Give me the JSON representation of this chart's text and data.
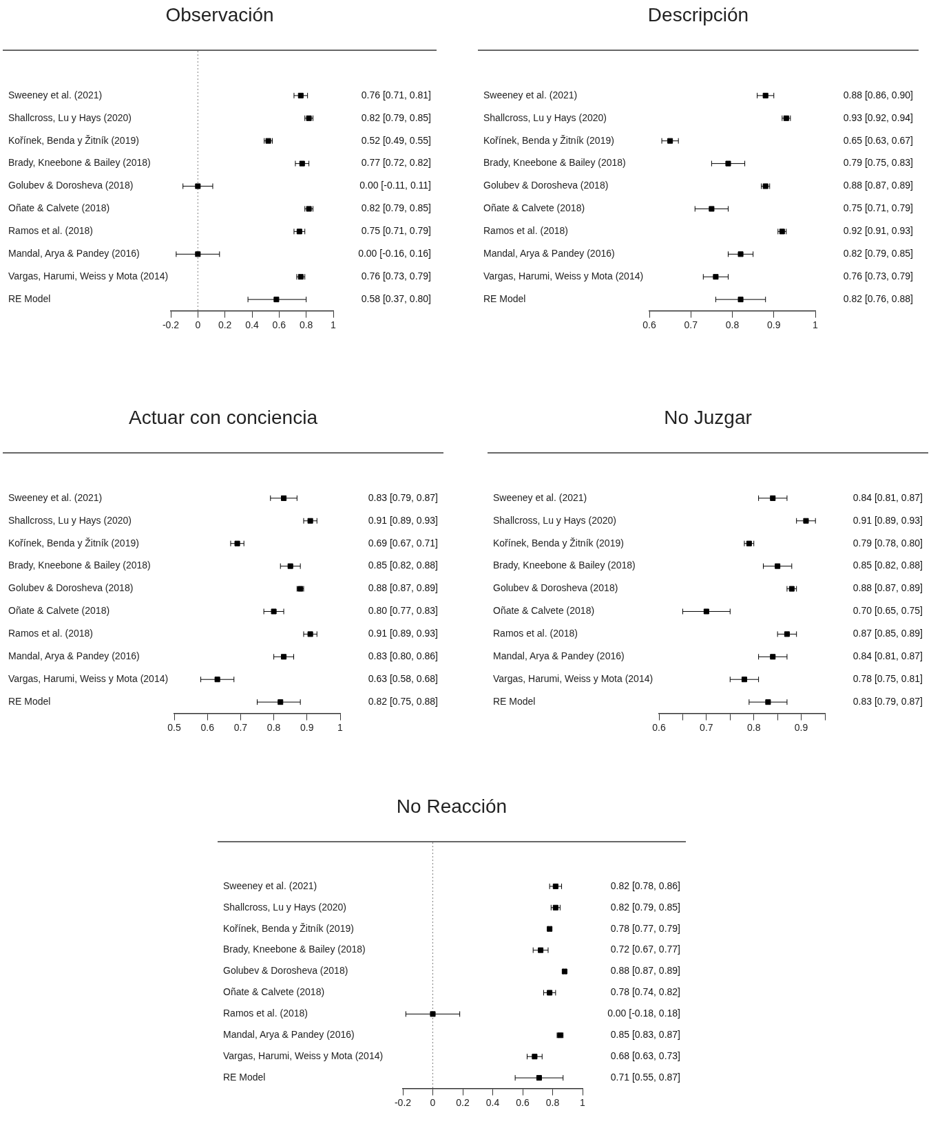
{
  "chart_data": [
    {
      "type": "scatter",
      "orientation": "horizontal",
      "title": "Observación",
      "categories": [
        "Sweeney et al. (2021)",
        "Shallcross, Lu y Hays (2020)",
        "Kořínek, Benda y Žitník (2019)",
        "Brady, Kneebone & Bailey (2018)",
        "Golubev & Dorosheva (2018)",
        "Oñate & Calvete (2018)",
        "Ramos et al. (2018)",
        "Mandal, Arya & Pandey (2016)",
        "Vargas, Harumi, Weiss y Mota (2014)",
        "RE Model"
      ],
      "xlim": [
        -0.2,
        1
      ],
      "xticks": [
        -0.2,
        0,
        0.2,
        0.4,
        0.6,
        0.8,
        1
      ],
      "ref_lines": [
        {
          "axis": "x",
          "value": 0,
          "line_style": "dotted",
          "color": "#808080"
        }
      ],
      "series": [
        {
          "color": "#000000",
          "marker": "square",
          "values": [
            0.76,
            0.82,
            0.52,
            0.77,
            0.0,
            0.82,
            0.75,
            0.0,
            0.76,
            0.58
          ],
          "errors": [
            [
              0.71,
              0.81
            ],
            [
              0.79,
              0.85
            ],
            [
              0.49,
              0.55
            ],
            [
              0.72,
              0.82
            ],
            [
              -0.11,
              0.11
            ],
            [
              0.79,
              0.85
            ],
            [
              0.71,
              0.79
            ],
            [
              -0.16,
              0.16
            ],
            [
              0.73,
              0.79
            ],
            [
              0.37,
              0.8
            ]
          ],
          "value_labels": [
            "0.76 [0.71, 0.81]",
            "0.82 [0.79, 0.85]",
            "0.52 [0.49, 0.55]",
            "0.77 [0.72, 0.82]",
            "0.00 [-0.11, 0.11]",
            "0.82 [0.79, 0.85]",
            "0.75 [0.71, 0.79]",
            "0.00 [-0.16, 0.16]",
            "0.76 [0.73, 0.79]",
            "0.58 [0.37, 0.80]"
          ]
        }
      ]
    },
    {
      "type": "scatter",
      "orientation": "horizontal",
      "title": "Descripción",
      "categories": [
        "Sweeney et al. (2021)",
        "Shallcross, Lu y Hays (2020)",
        "Kořínek, Benda y Žitník (2019)",
        "Brady, Kneebone & Bailey (2018)",
        "Golubev & Dorosheva (2018)",
        "Oñate & Calvete (2018)",
        "Ramos et al. (2018)",
        "Mandal, Arya & Pandey (2016)",
        "Vargas, Harumi, Weiss y Mota (2014)",
        "RE Model"
      ],
      "xlim": [
        0.6,
        1
      ],
      "xticks": [
        0.6,
        0.7,
        0.8,
        0.9,
        1
      ],
      "series": [
        {
          "color": "#000000",
          "marker": "square",
          "values": [
            0.88,
            0.93,
            0.65,
            0.79,
            0.88,
            0.75,
            0.92,
            0.82,
            0.76,
            0.82
          ],
          "errors": [
            [
              0.86,
              0.9
            ],
            [
              0.92,
              0.94
            ],
            [
              0.63,
              0.67
            ],
            [
              0.75,
              0.83
            ],
            [
              0.87,
              0.89
            ],
            [
              0.71,
              0.79
            ],
            [
              0.91,
              0.93
            ],
            [
              0.79,
              0.85
            ],
            [
              0.73,
              0.79
            ],
            [
              0.76,
              0.88
            ]
          ],
          "value_labels": [
            "0.88 [0.86, 0.90]",
            "0.93 [0.92, 0.94]",
            "0.65 [0.63, 0.67]",
            "0.79 [0.75, 0.83]",
            "0.88 [0.87, 0.89]",
            "0.75 [0.71, 0.79]",
            "0.92 [0.91, 0.93]",
            "0.82 [0.79, 0.85]",
            "0.76 [0.73, 0.79]",
            "0.82 [0.76, 0.88]"
          ]
        }
      ]
    },
    {
      "type": "scatter",
      "orientation": "horizontal",
      "title": "Actuar con conciencia",
      "categories": [
        "Sweeney et al. (2021)",
        "Shallcross, Lu y Hays (2020)",
        "Kořínek, Benda y Žitník (2019)",
        "Brady, Kneebone & Bailey (2018)",
        "Golubev & Dorosheva (2018)",
        "Oñate & Calvete (2018)",
        "Ramos et al. (2018)",
        "Mandal, Arya & Pandey (2016)",
        "Vargas, Harumi, Weiss y Mota (2014)",
        "RE Model"
      ],
      "xlim": [
        0.5,
        1
      ],
      "xticks": [
        0.5,
        0.6,
        0.7,
        0.8,
        0.9,
        1
      ],
      "series": [
        {
          "color": "#000000",
          "marker": "square",
          "values": [
            0.83,
            0.91,
            0.69,
            0.85,
            0.88,
            0.8,
            0.91,
            0.83,
            0.63,
            0.82
          ],
          "errors": [
            [
              0.79,
              0.87
            ],
            [
              0.89,
              0.93
            ],
            [
              0.67,
              0.71
            ],
            [
              0.82,
              0.88
            ],
            [
              0.87,
              0.89
            ],
            [
              0.77,
              0.83
            ],
            [
              0.89,
              0.93
            ],
            [
              0.8,
              0.86
            ],
            [
              0.58,
              0.68
            ],
            [
              0.75,
              0.88
            ]
          ],
          "value_labels": [
            "0.83 [0.79, 0.87]",
            "0.91 [0.89, 0.93]",
            "0.69 [0.67, 0.71]",
            "0.85 [0.82, 0.88]",
            "0.88 [0.87, 0.89]",
            "0.80 [0.77, 0.83]",
            "0.91 [0.89, 0.93]",
            "0.83 [0.80, 0.86]",
            "0.63 [0.58, 0.68]",
            "0.82 [0.75, 0.88]"
          ]
        }
      ]
    },
    {
      "type": "scatter",
      "orientation": "horizontal",
      "title": "No Juzgar",
      "categories": [
        "Sweeney et al. (2021)",
        "Shallcross, Lu y Hays (2020)",
        "Kořínek, Benda y Žitník (2019)",
        "Brady, Kneebone & Bailey (2018)",
        "Golubev & Dorosheva (2018)",
        "Oñate & Calvete (2018)",
        "Ramos et al. (2018)",
        "Mandal, Arya & Pandey (2016)",
        "Vargas, Harumi, Weiss y Mota (2014)",
        "RE Model"
      ],
      "xlim": [
        0.6,
        0.95
      ],
      "xticks": [
        0.6,
        {
          "value": 0.65,
          "label": null
        },
        0.7,
        {
          "value": 0.75,
          "label": null
        },
        0.8,
        {
          "value": 0.85,
          "label": null
        },
        0.9,
        {
          "value": 0.95,
          "label": null
        }
      ],
      "series": [
        {
          "color": "#000000",
          "marker": "square",
          "values": [
            0.84,
            0.91,
            0.79,
            0.85,
            0.88,
            0.7,
            0.87,
            0.84,
            0.78,
            0.83
          ],
          "errors": [
            [
              0.81,
              0.87
            ],
            [
              0.89,
              0.93
            ],
            [
              0.78,
              0.8
            ],
            [
              0.82,
              0.88
            ],
            [
              0.87,
              0.89
            ],
            [
              0.65,
              0.75
            ],
            [
              0.85,
              0.89
            ],
            [
              0.81,
              0.87
            ],
            [
              0.75,
              0.81
            ],
            [
              0.79,
              0.87
            ]
          ],
          "value_labels": [
            "0.84 [0.81, 0.87]",
            "0.91 [0.89, 0.93]",
            "0.79 [0.78, 0.80]",
            "0.85 [0.82, 0.88]",
            "0.88 [0.87, 0.89]",
            "0.70 [0.65, 0.75]",
            "0.87 [0.85, 0.89]",
            "0.84 [0.81, 0.87]",
            "0.78 [0.75, 0.81]",
            "0.83 [0.79, 0.87]"
          ]
        }
      ]
    },
    {
      "type": "scatter",
      "orientation": "horizontal",
      "title": "No Reacción",
      "categories": [
        "Sweeney et al. (2021)",
        "Shallcross, Lu y Hays (2020)",
        "Kořínek, Benda y Žitník (2019)",
        "Brady, Kneebone & Bailey (2018)",
        "Golubev & Dorosheva (2018)",
        "Oñate & Calvete (2018)",
        "Ramos et al. (2018)",
        "Mandal, Arya & Pandey (2016)",
        "Vargas, Harumi, Weiss y Mota (2014)",
        "RE Model"
      ],
      "xlim": [
        -0.2,
        1
      ],
      "xticks": [
        -0.2,
        0,
        0.2,
        0.4,
        0.6,
        0.8,
        1
      ],
      "ref_lines": [
        {
          "axis": "x",
          "value": 0,
          "line_style": "dotted",
          "color": "#808080"
        }
      ],
      "series": [
        {
          "color": "#000000",
          "marker": "square",
          "values": [
            0.82,
            0.82,
            0.78,
            0.72,
            0.88,
            0.78,
            0.0,
            0.85,
            0.68,
            0.71
          ],
          "errors": [
            [
              0.78,
              0.86
            ],
            [
              0.79,
              0.85
            ],
            [
              0.77,
              0.79
            ],
            [
              0.67,
              0.77
            ],
            [
              0.87,
              0.89
            ],
            [
              0.74,
              0.82
            ],
            [
              -0.18,
              0.18
            ],
            [
              0.83,
              0.87
            ],
            [
              0.63,
              0.73
            ],
            [
              0.55,
              0.87
            ]
          ],
          "value_labels": [
            "0.82 [0.78, 0.86]",
            "0.82 [0.79, 0.85]",
            "0.78 [0.77, 0.79]",
            "0.72 [0.67, 0.77]",
            "0.88 [0.87, 0.89]",
            "0.78 [0.74, 0.82]",
            "0.00 [-0.18, 0.18]",
            "0.85 [0.83, 0.87]",
            "0.68 [0.63, 0.73]",
            "0.71 [0.55, 0.87]"
          ]
        }
      ]
    }
  ]
}
